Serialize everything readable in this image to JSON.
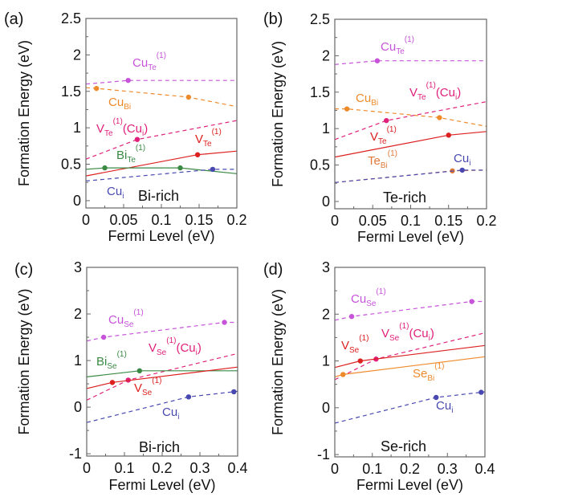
{
  "chart_data": [
    {
      "type": "line",
      "panel_label": "(a)",
      "region": "Bi-rich",
      "xlabel": "Fermi Level (eV)",
      "ylabel": "Formation Energy (eV)",
      "xlim": [
        0,
        0.2
      ],
      "ylim": [
        -0.1,
        2.5
      ],
      "xticks": [
        "0",
        "0.05",
        "0.1",
        "0.15",
        "0.2"
      ],
      "xtick_values": [
        0,
        0.05,
        0.1,
        0.15,
        0.2
      ],
      "yticks": [
        "0",
        "0.5",
        "1",
        "1.5",
        "2",
        "2.5"
      ],
      "ytick_values": [
        0,
        0.5,
        1,
        1.5,
        2,
        2.5
      ],
      "grid": false,
      "series": [
        {
          "label": [
            {
              "t": "Cu",
              "s": ""
            },
            {
              "t": "Te",
              "s": "sub"
            },
            {
              "t": "(1)",
              "s": "sup"
            }
          ],
          "color": "#c653d9",
          "dashed": true,
          "x": [
            0,
            0.056,
            0.2
          ],
          "y": [
            1.6,
            1.65,
            1.65
          ],
          "points": [
            [
              0.056,
              1.65
            ]
          ]
        },
        {
          "label": [
            {
              "t": "Cu",
              "s": ""
            },
            {
              "t": "Bi",
              "s": "sub"
            }
          ],
          "color": "#ee8a2a",
          "dashed": true,
          "x": [
            0,
            0.014,
            0.136,
            0.2
          ],
          "y": [
            1.55,
            1.54,
            1.42,
            1.29
          ],
          "points": [
            [
              0.014,
              1.54
            ],
            [
              0.136,
              1.42
            ]
          ]
        },
        {
          "label": [
            {
              "t": "V",
              "s": ""
            },
            {
              "t": "Te",
              "s": "sub"
            },
            {
              "t": "(1)",
              "s": "sup"
            },
            {
              "t": "(Cu",
              "s": ""
            },
            {
              "t": "i",
              "s": "sub"
            },
            {
              "t": ")",
              "s": ""
            }
          ],
          "color": "#e0207a",
          "dashed": true,
          "x": [
            0,
            0.068,
            0.2
          ],
          "y": [
            0.57,
            0.84,
            1.1
          ],
          "points": [
            [
              0.068,
              0.84
            ]
          ]
        },
        {
          "label": [
            {
              "t": "V",
              "s": ""
            },
            {
              "t": "Te",
              "s": "sub"
            },
            {
              "t": "(1)",
              "s": "sup"
            }
          ],
          "color": "#dd2020",
          "dashed": false,
          "x": [
            0,
            0.148,
            0.2
          ],
          "y": [
            0.34,
            0.63,
            0.68
          ],
          "points": [
            [
              0.148,
              0.63
            ]
          ]
        },
        {
          "label": [
            {
              "t": "Bi",
              "s": ""
            },
            {
              "t": "Te",
              "s": "sub"
            },
            {
              "t": "(1)",
              "s": "sup"
            }
          ],
          "color": "#3a8a45",
          "dashed": false,
          "x": [
            0,
            0.025,
            0.125,
            0.2
          ],
          "y": [
            0.43,
            0.45,
            0.45,
            0.37
          ],
          "points": [
            [
              0.025,
              0.45
            ],
            [
              0.125,
              0.45
            ]
          ]
        },
        {
          "label": [
            {
              "t": "Cu",
              "s": ""
            },
            {
              "t": "i",
              "s": "sub"
            }
          ],
          "color": "#4848b0",
          "dashed": true,
          "x": [
            0,
            0.168,
            0.2
          ],
          "y": [
            0.27,
            0.43,
            0.43
          ],
          "points": [
            [
              0.168,
              0.43
            ]
          ]
        }
      ]
    },
    {
      "type": "line",
      "panel_label": "(b)",
      "region": "Te-rich",
      "xlabel": "Fermi Level (eV)",
      "ylabel": "Formation Energy (eV)",
      "xlim": [
        0,
        0.2
      ],
      "ylim": [
        -0.1,
        2.5
      ],
      "xticks": [
        "0",
        "0.05",
        "0.1",
        "0.15",
        "0.2"
      ],
      "xtick_values": [
        0,
        0.05,
        0.1,
        0.15,
        0.2
      ],
      "yticks": [
        "0",
        "0.5",
        "1",
        "1.5",
        "2",
        "2.5"
      ],
      "ytick_values": [
        0,
        0.5,
        1,
        1.5,
        2,
        2.5
      ],
      "grid": false,
      "series": [
        {
          "label": [
            {
              "t": "Cu",
              "s": ""
            },
            {
              "t": "Te",
              "s": "sub"
            },
            {
              "t": "(1)",
              "s": "sup"
            }
          ],
          "color": "#c653d9",
          "dashed": true,
          "x": [
            0,
            0.056,
            0.2
          ],
          "y": [
            1.88,
            1.93,
            1.93
          ],
          "points": [
            [
              0.056,
              1.93
            ]
          ]
        },
        {
          "label": [
            {
              "t": "Cu",
              "s": ""
            },
            {
              "t": "Bi",
              "s": "sub"
            }
          ],
          "color": "#ee8a2a",
          "dashed": true,
          "x": [
            0,
            0.016,
            0.138,
            0.2
          ],
          "y": [
            1.27,
            1.27,
            1.15,
            1.03
          ],
          "points": [
            [
              0.016,
              1.27
            ],
            [
              0.138,
              1.15
            ]
          ]
        },
        {
          "label": [
            {
              "t": "V",
              "s": ""
            },
            {
              "t": "Te",
              "s": "sub"
            },
            {
              "t": "(1)",
              "s": "sup"
            },
            {
              "t": "(Cu",
              "s": ""
            },
            {
              "t": "i",
              "s": "sub"
            },
            {
              "t": ")",
              "s": ""
            }
          ],
          "color": "#e0207a",
          "dashed": true,
          "x": [
            0,
            0.068,
            0.2
          ],
          "y": [
            0.85,
            1.11,
            1.37
          ],
          "points": [
            [
              0.068,
              1.11
            ]
          ]
        },
        {
          "label": [
            {
              "t": "V",
              "s": ""
            },
            {
              "t": "Te",
              "s": "sub"
            },
            {
              "t": "(1)",
              "s": "sup"
            }
          ],
          "color": "#dd2020",
          "dashed": false,
          "x": [
            0,
            0.15,
            0.2
          ],
          "y": [
            0.61,
            0.91,
            0.96
          ],
          "points": [
            [
              0.15,
              0.91
            ]
          ]
        },
        {
          "label": [
            {
              "t": "Te",
              "s": ""
            },
            {
              "t": "Bi",
              "s": "sub"
            },
            {
              "t": "(1)",
              "s": "sup"
            }
          ],
          "color": "#e07a3a",
          "dashed": true,
          "x": [
            0,
            0.155,
            0.2
          ],
          "y": [
            0.26,
            0.42,
            0.43
          ],
          "points": [
            [
              0.155,
              0.42
            ]
          ]
        },
        {
          "label": [
            {
              "t": "Cu",
              "s": ""
            },
            {
              "t": "i",
              "s": "sub"
            }
          ],
          "color": "#4848b0",
          "dashed": true,
          "x": [
            0,
            0.168,
            0.2
          ],
          "y": [
            0.26,
            0.43,
            0.43
          ],
          "points": [
            [
              0.168,
              0.43
            ]
          ]
        }
      ]
    },
    {
      "type": "line",
      "panel_label": "(c)",
      "region": "Bi-rich",
      "xlabel": "Fermi Level (eV)",
      "ylabel": "Formation Energy (eV)",
      "xlim": [
        0,
        0.4
      ],
      "ylim": [
        -1.05,
        3
      ],
      "xticks": [
        "0",
        "0.1",
        "0.2",
        "0.3",
        "0.4"
      ],
      "xtick_values": [
        0,
        0.1,
        0.2,
        0.3,
        0.4
      ],
      "yticks": [
        "-1",
        "0",
        "1",
        "2",
        "3"
      ],
      "ytick_values": [
        -1,
        0,
        1,
        2,
        3
      ],
      "grid": false,
      "series": [
        {
          "label": [
            {
              "t": "Cu",
              "s": ""
            },
            {
              "t": "Se",
              "s": "sub"
            },
            {
              "t": "(1)",
              "s": "sup"
            }
          ],
          "color": "#c653d9",
          "dashed": true,
          "x": [
            0,
            0.045,
            0.365,
            0.4
          ],
          "y": [
            1.42,
            1.5,
            1.82,
            1.82
          ],
          "points": [
            [
              0.045,
              1.5
            ],
            [
              0.365,
              1.82
            ]
          ]
        },
        {
          "label": [
            {
              "t": "V",
              "s": ""
            },
            {
              "t": "Se",
              "s": "sub"
            },
            {
              "t": "(1)",
              "s": "sup"
            },
            {
              "t": "(Cu",
              "s": ""
            },
            {
              "t": "i",
              "s": "sub"
            },
            {
              "t": ")",
              "s": ""
            }
          ],
          "color": "#e0207a",
          "dashed": true,
          "x": [
            0,
            0.11,
            0.4
          ],
          "y": [
            0.15,
            0.58,
            1.15
          ],
          "points": [
            [
              0.11,
              0.58
            ]
          ]
        },
        {
          "label": [
            {
              "t": "Bi",
              "s": ""
            },
            {
              "t": "Se",
              "s": "sub"
            },
            {
              "t": "(1)",
              "s": "sup"
            }
          ],
          "color": "#3a8a45",
          "dashed": false,
          "x": [
            0,
            0.14,
            0.4
          ],
          "y": [
            0.65,
            0.78,
            0.78
          ],
          "points": [
            [
              0.14,
              0.78
            ]
          ]
        },
        {
          "label": [
            {
              "t": "V",
              "s": ""
            },
            {
              "t": "Se",
              "s": "sub"
            },
            {
              "t": "(1)",
              "s": "sup"
            }
          ],
          "color": "#dd2020",
          "dashed": false,
          "x": [
            0,
            0.068,
            0.4
          ],
          "y": [
            0.4,
            0.53,
            0.86
          ],
          "points": [
            [
              0.068,
              0.53
            ]
          ]
        },
        {
          "label": [
            {
              "t": "Cu",
              "s": ""
            },
            {
              "t": "i",
              "s": "sub"
            }
          ],
          "color": "#4848b0",
          "dashed": true,
          "x": [
            0,
            0.27,
            0.39,
            0.4
          ],
          "y": [
            -0.33,
            0.22,
            0.33,
            0.34
          ],
          "points": [
            [
              0.27,
              0.22
            ],
            [
              0.39,
              0.33
            ]
          ]
        }
      ]
    },
    {
      "type": "line",
      "panel_label": "(d)",
      "region": "Se-rich",
      "xlabel": "Fermi Level (eV)",
      "ylabel": "Formation Energy (eV)",
      "xlim": [
        0,
        0.4
      ],
      "ylim": [
        -1.05,
        3
      ],
      "xticks": [
        "0",
        "0.1",
        "0.2",
        "0.3",
        "0.4"
      ],
      "xtick_values": [
        0,
        0.1,
        0.2,
        0.3,
        0.4
      ],
      "yticks": [
        "-1",
        "0",
        "1",
        "2",
        "3"
      ],
      "ytick_values": [
        -1,
        0,
        1,
        2,
        3
      ],
      "grid": false,
      "series": [
        {
          "label": [
            {
              "t": "Cu",
              "s": ""
            },
            {
              "t": "Se",
              "s": "sub"
            },
            {
              "t": "(1)",
              "s": "sup"
            }
          ],
          "color": "#c653d9",
          "dashed": true,
          "x": [
            0,
            0.045,
            0.365,
            0.4
          ],
          "y": [
            1.87,
            1.95,
            2.27,
            2.27
          ],
          "points": [
            [
              0.045,
              1.95
            ],
            [
              0.365,
              2.27
            ]
          ]
        },
        {
          "label": [
            {
              "t": "V",
              "s": ""
            },
            {
              "t": "Se",
              "s": "sub"
            },
            {
              "t": "(1)",
              "s": "sup"
            },
            {
              "t": "(Cu",
              "s": ""
            },
            {
              "t": "i",
              "s": "sub"
            },
            {
              "t": ")",
              "s": ""
            }
          ],
          "color": "#e0207a",
          "dashed": true,
          "x": [
            0,
            0.11,
            0.4
          ],
          "y": [
            0.6,
            1.04,
            1.6
          ],
          "points": [
            [
              0.11,
              1.04
            ]
          ]
        },
        {
          "label": [
            {
              "t": "V",
              "s": ""
            },
            {
              "t": "Se",
              "s": "sub"
            },
            {
              "t": "(1)",
              "s": "sup"
            }
          ],
          "color": "#dd2020",
          "dashed": false,
          "x": [
            0,
            0.068,
            0.4
          ],
          "y": [
            0.86,
            1.0,
            1.33
          ],
          "points": [
            [
              0.068,
              1.0
            ]
          ]
        },
        {
          "label": [
            {
              "t": "Se",
              "s": ""
            },
            {
              "t": "Bi",
              "s": "sub"
            },
            {
              "t": "(1)",
              "s": "sup"
            }
          ],
          "color": "#ee8a2a",
          "dashed": false,
          "x": [
            0,
            0.022,
            0.4
          ],
          "y": [
            0.66,
            0.71,
            1.09
          ],
          "points": [
            [
              0.022,
              0.71
            ]
          ]
        },
        {
          "label": [
            {
              "t": "Cu",
              "s": ""
            },
            {
              "t": "i",
              "s": "sub"
            }
          ],
          "color": "#4848b0",
          "dashed": true,
          "x": [
            0,
            0.27,
            0.39,
            0.4
          ],
          "y": [
            -0.33,
            0.22,
            0.33,
            0.34
          ],
          "points": [
            [
              0.27,
              0.22
            ],
            [
              0.39,
              0.33
            ]
          ]
        }
      ]
    }
  ]
}
